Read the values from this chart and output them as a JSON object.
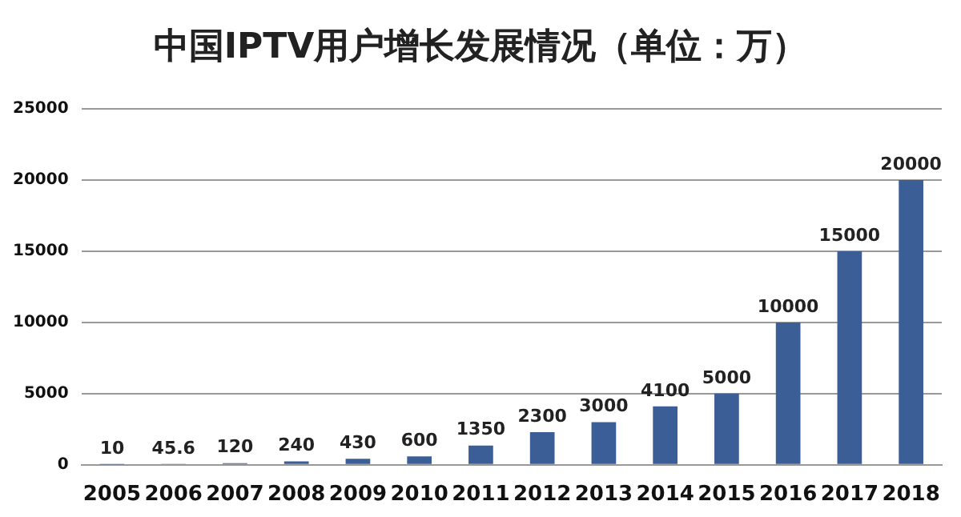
{
  "chart_data": {
    "type": "bar",
    "title": "中国IPTV用户增长发展情况（单位：万）",
    "categories": [
      "2005",
      "2006",
      "2007",
      "2008",
      "2009",
      "2010",
      "2011",
      "2012",
      "2013",
      "2014",
      "2015",
      "2016",
      "2017",
      "2018"
    ],
    "values": [
      10,
      45.6,
      120,
      240,
      430,
      600,
      1350,
      2300,
      3000,
      4100,
      5000,
      10000,
      15000,
      20000
    ],
    "color": "#3b5e96",
    "ylim": [
      0,
      25000
    ],
    "yticks": [
      0,
      5000,
      10000,
      15000,
      20000,
      25000
    ],
    "grid": "y",
    "data_labels": true
  }
}
